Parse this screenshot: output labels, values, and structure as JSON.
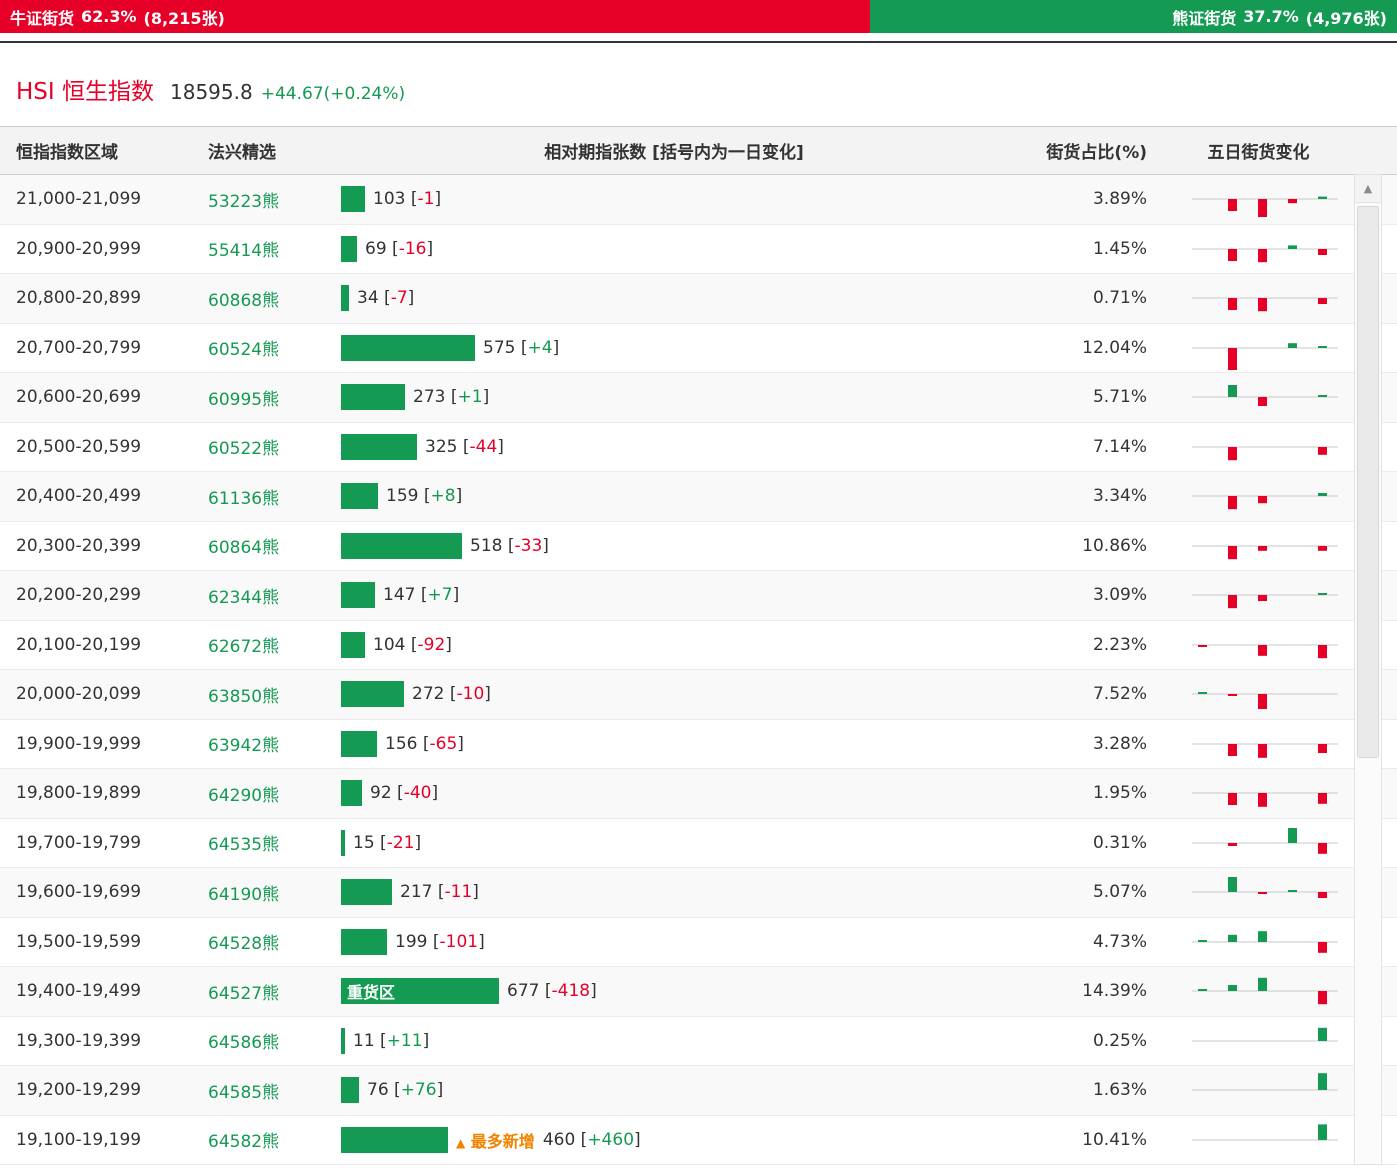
{
  "colors": {
    "red": "#e60028",
    "green": "#149a52",
    "orange": "#f08300",
    "dark": "#333333"
  },
  "top_bar": {
    "bull": {
      "label": "牛证街货",
      "pct": "62.3%",
      "count": "(8,215张)",
      "width_pct": 62.3
    },
    "bear": {
      "label": "熊证街货",
      "pct": "37.7%",
      "count": "(4,976张)"
    }
  },
  "index_header": {
    "name": "HSI 恒生指数",
    "value": "18595.8",
    "change": "+44.67(+0.24%)"
  },
  "table": {
    "headers": [
      "恒指指数区域",
      "法兴精选",
      "相对期指张数 [括号内为一日变化]",
      "街货占比(%)",
      "五日街货变化"
    ],
    "max_value": 677,
    "rows": [
      {
        "range": "21,000-21,099",
        "code": "53223熊",
        "value": 103,
        "change": "-1",
        "pct": "3.89%",
        "spark": [
          0,
          -2,
          -3,
          -0.7,
          0.4
        ]
      },
      {
        "range": "20,900-20,999",
        "code": "55414熊",
        "value": 69,
        "change": "-16",
        "pct": "1.45%",
        "spark": [
          0,
          -2,
          -2.2,
          0.6,
          -1
        ]
      },
      {
        "range": "20,800-20,899",
        "code": "60868熊",
        "value": 34,
        "change": "-7",
        "pct": "0.71%",
        "spark": [
          0,
          -2,
          -2.2,
          0,
          -1
        ]
      },
      {
        "range": "20,700-20,799",
        "code": "60524熊",
        "value": 575,
        "change": "+4",
        "pct": "12.04%",
        "spark": [
          0,
          -4,
          0,
          0.8,
          0.2
        ]
      },
      {
        "range": "20,600-20,699",
        "code": "60995熊",
        "value": 273,
        "change": "+1",
        "pct": "5.71%",
        "spark": [
          0,
          2,
          -1.5,
          0,
          0.2
        ]
      },
      {
        "range": "20,500-20,599",
        "code": "60522熊",
        "value": 325,
        "change": "-44",
        "pct": "7.14%",
        "spark": [
          0,
          -2.2,
          0,
          0,
          -1.3
        ]
      },
      {
        "range": "20,400-20,499",
        "code": "61136熊",
        "value": 159,
        "change": "+8",
        "pct": "3.34%",
        "spark": [
          0,
          -2.2,
          -1.2,
          0,
          0.5
        ]
      },
      {
        "range": "20,300-20,399",
        "code": "60864熊",
        "value": 518,
        "change": "-33",
        "pct": "10.86%",
        "spark": [
          0,
          -2.2,
          -0.8,
          0,
          -0.8
        ]
      },
      {
        "range": "20,200-20,299",
        "code": "62344熊",
        "value": 147,
        "change": "+7",
        "pct": "3.09%",
        "spark": [
          0,
          -2.2,
          -1,
          0,
          0.3
        ]
      },
      {
        "range": "20,100-20,199",
        "code": "62672熊",
        "value": 104,
        "change": "-92",
        "pct": "2.23%",
        "spark": [
          -0.2,
          0,
          -1.8,
          0,
          -2.2
        ]
      },
      {
        "range": "20,000-20,099",
        "code": "63850熊",
        "value": 272,
        "change": "-10",
        "pct": "7.52%",
        "spark": [
          0.2,
          -0.3,
          -2.5,
          0,
          0
        ]
      },
      {
        "range": "19,900-19,999",
        "code": "63942熊",
        "value": 156,
        "change": "-65",
        "pct": "3.28%",
        "spark": [
          0,
          -2,
          -2.3,
          0,
          -1.5
        ]
      },
      {
        "range": "19,800-19,899",
        "code": "64290熊",
        "value": 92,
        "change": "-40",
        "pct": "1.95%",
        "spark": [
          0,
          -2,
          -2.3,
          0,
          -1.8
        ]
      },
      {
        "range": "19,700-19,799",
        "code": "64535熊",
        "value": 15,
        "change": "-21",
        "pct": "0.31%",
        "spark": [
          0,
          -0.5,
          0,
          2.5,
          -1.8
        ]
      },
      {
        "range": "19,600-19,699",
        "code": "64190熊",
        "value": 217,
        "change": "-11",
        "pct": "5.07%",
        "spark": [
          0,
          2.5,
          -0.3,
          0.2,
          -1
        ]
      },
      {
        "range": "19,500-19,599",
        "code": "64528熊",
        "value": 199,
        "change": "-101",
        "pct": "4.73%",
        "spark": [
          0.3,
          1.2,
          1.8,
          0,
          -1.8
        ]
      },
      {
        "range": "19,400-19,499",
        "code": "64527熊",
        "value": 677,
        "change": "-418",
        "pct": "14.39%",
        "tag": "重货区",
        "spark": [
          0.3,
          1,
          2.2,
          0,
          -2.2
        ]
      },
      {
        "range": "19,300-19,399",
        "code": "64586熊",
        "value": 11,
        "change": "+11",
        "pct": "0.25%",
        "spark": [
          0,
          0,
          0,
          0,
          2.2
        ]
      },
      {
        "range": "19,200-19,299",
        "code": "64585熊",
        "value": 76,
        "change": "+76",
        "pct": "1.63%",
        "spark": [
          0,
          0,
          0,
          0,
          2.8
        ]
      },
      {
        "range": "19,100-19,199",
        "code": "64582熊",
        "value": 460,
        "change": "+460",
        "pct": "10.41%",
        "note_icon": "▲",
        "note": "最多新增",
        "spark": [
          0,
          0,
          0,
          0,
          2.6
        ]
      }
    ]
  },
  "scrollbar": {
    "up_icon": "▲"
  }
}
